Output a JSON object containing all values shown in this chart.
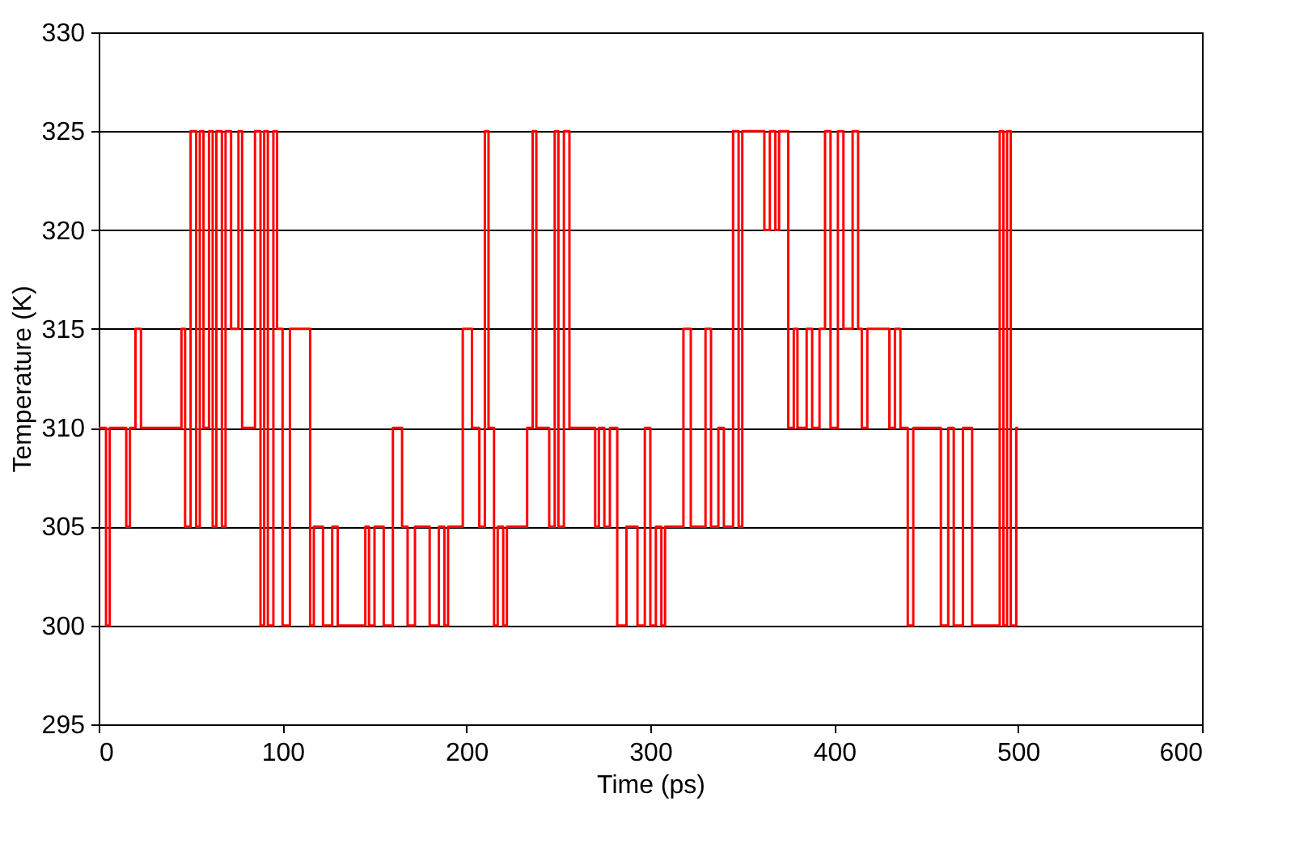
{
  "chart_data": {
    "type": "step",
    "xlabel": "Time (ps)",
    "ylabel": "Temperature (K)",
    "xlim": [
      0,
      600
    ],
    "xticks": [
      0,
      100,
      200,
      300,
      400,
      500,
      600
    ],
    "ylim": [
      295,
      330
    ],
    "yticks": [
      295,
      300,
      305,
      310,
      315,
      320,
      325,
      330
    ],
    "grid": "y",
    "line_style": "solid",
    "marker": "none",
    "series": [
      {
        "color": "#ff0000",
        "x": [
          0,
          4,
          6,
          15,
          17,
          20,
          23,
          45,
          47,
          50,
          53,
          55,
          57,
          60,
          62,
          64,
          67,
          69,
          72,
          76,
          78,
          85,
          88,
          90,
          92,
          95,
          97,
          100,
          104,
          113,
          115,
          117,
          122,
          127,
          130,
          145,
          147,
          150,
          155,
          160,
          165,
          168,
          172,
          180,
          185,
          188,
          190,
          198,
          203,
          207,
          210,
          212,
          215,
          217,
          220,
          222,
          233,
          236,
          238,
          245,
          248,
          250,
          253,
          256,
          265,
          270,
          272,
          275,
          278,
          282,
          287,
          293,
          297,
          300,
          303,
          306,
          308,
          318,
          322,
          330,
          333,
          337,
          340,
          345,
          348,
          350,
          360,
          362,
          365,
          368,
          370,
          375,
          378,
          380,
          385,
          388,
          392,
          395,
          398,
          402,
          405,
          410,
          413,
          415,
          418,
          430,
          433,
          436,
          440,
          443,
          455,
          458,
          462,
          465,
          470,
          475,
          490,
          492,
          494,
          496,
          499,
          500
        ],
        "values": [
          310,
          300,
          310,
          305,
          310,
          315,
          310,
          315,
          305,
          325,
          305,
          325,
          310,
          325,
          305,
          325,
          305,
          325,
          315,
          325,
          310,
          325,
          300,
          325,
          300,
          325,
          315,
          300,
          315,
          315,
          300,
          305,
          300,
          305,
          300,
          305,
          300,
          305,
          300,
          310,
          305,
          300,
          305,
          300,
          305,
          300,
          305,
          315,
          310,
          305,
          325,
          310,
          300,
          305,
          300,
          305,
          310,
          325,
          310,
          305,
          325,
          305,
          325,
          310,
          310,
          305,
          310,
          305,
          310,
          300,
          305,
          300,
          310,
          300,
          305,
          300,
          305,
          315,
          305,
          315,
          305,
          310,
          305,
          325,
          305,
          325,
          325,
          320,
          325,
          320,
          325,
          310,
          315,
          310,
          315,
          310,
          315,
          325,
          310,
          325,
          315,
          325,
          315,
          310,
          315,
          310,
          315,
          310,
          300,
          310,
          310,
          300,
          310,
          300,
          310,
          300,
          325,
          300,
          325,
          300,
          310,
          310
        ]
      }
    ]
  }
}
